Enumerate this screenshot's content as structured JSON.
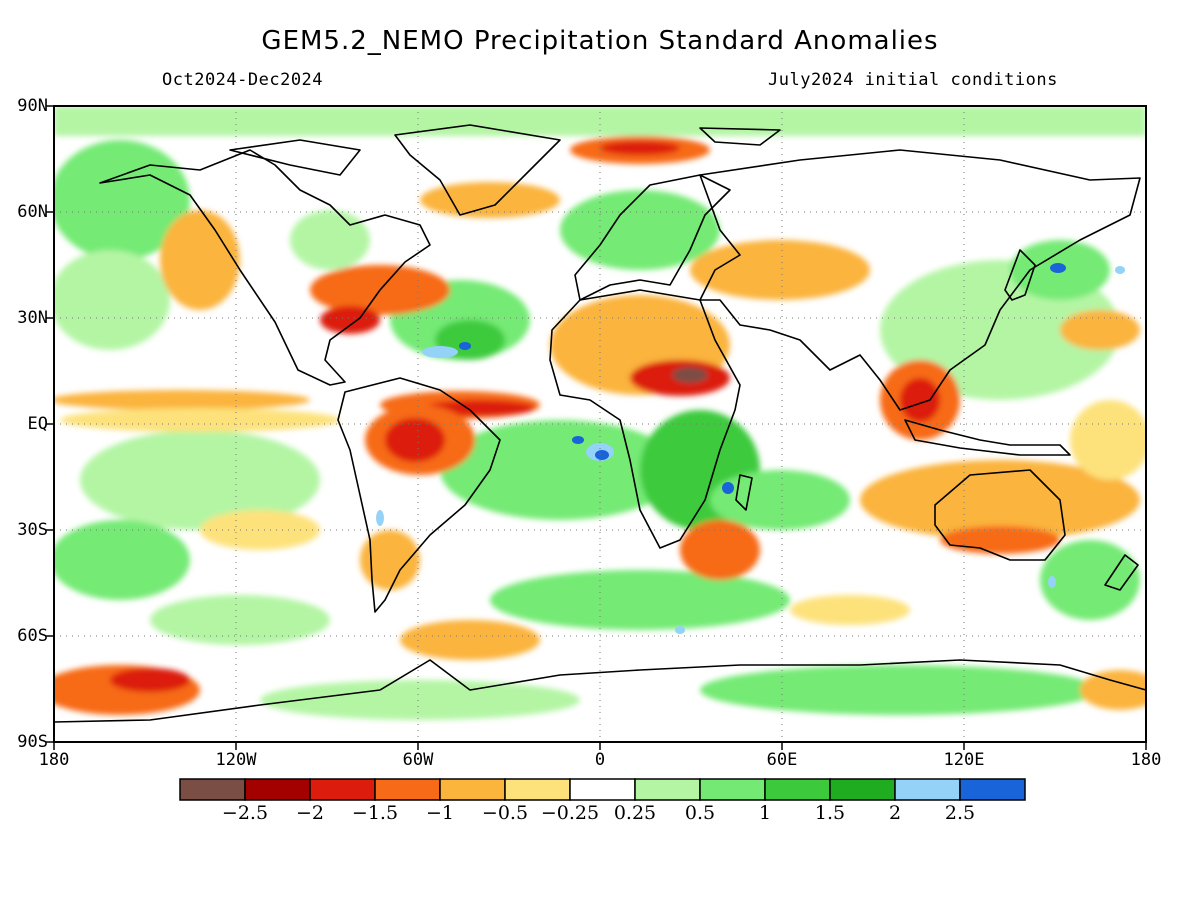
{
  "title": "GEM5.2_NEMO Precipitation Standard Anomalies",
  "period": "Oct2024-Dec2024",
  "initial_conditions": "July2024 initial conditions",
  "lat_labels": [
    "90N",
    "60N",
    "30N",
    "EQ",
    "30S",
    "60S",
    "90S"
  ],
  "lon_labels": [
    "180",
    "120W",
    "60W",
    "0",
    "60E",
    "120E",
    "180"
  ],
  "colorbar": {
    "labels": [
      "−2.5",
      "−2",
      "−1.5",
      "−1",
      "−0.5",
      "−0.25",
      "0.25",
      "0.5",
      "1",
      "1.5",
      "2",
      "2.5"
    ],
    "colors": [
      "#7a4e45",
      "#a30000",
      "#dc1c0c",
      "#f76a18",
      "#fbb43c",
      "#fde27c",
      "#ffffff",
      "#b4f5a4",
      "#74ea74",
      "#3cca3c",
      "#20ac20",
      "#94d2f8",
      "#1864d8"
    ]
  },
  "map": {
    "projection": "cylindrical equidistant",
    "extent": {
      "lon": [
        -180,
        180
      ],
      "lat": [
        -90,
        90
      ]
    },
    "grid": "dotted at 30 degree intervals",
    "coastlines": "black"
  }
}
